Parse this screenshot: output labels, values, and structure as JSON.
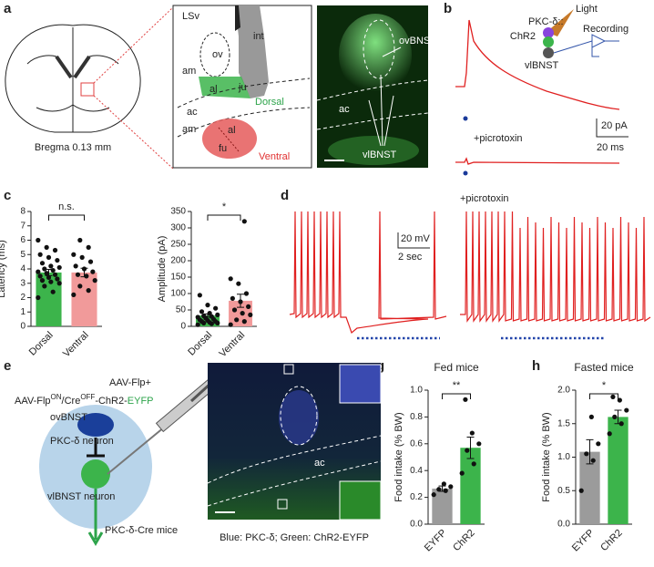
{
  "panel_labels": [
    "a",
    "b",
    "c",
    "d",
    "e",
    "f",
    "g",
    "h"
  ],
  "panel_a": {
    "caption": "Bregma 0.13 mm",
    "inset_labels": [
      "LSv",
      "int",
      "ov",
      "am",
      "al",
      "ju",
      "Dorsal",
      "ac",
      "am",
      "al",
      "fu",
      "Ventral"
    ],
    "image_labels": [
      "ovBNST",
      "ac",
      "vlBNST"
    ]
  },
  "panel_b": {
    "labels": [
      "PKC-δ::",
      "ChR2",
      "Light",
      "Recording",
      "vlBNST"
    ],
    "condition": "+picrotoxin",
    "scale_y": "20 pA",
    "scale_x": "20 ms"
  },
  "panel_d": {
    "condition": "+picrotoxin",
    "scale_y": "20 mV",
    "scale_x": "2 sec"
  },
  "panel_e": {
    "virus_1": "AAV-Flp+",
    "virus_2": [
      "AAV-Flp",
      "ON",
      "/Cre",
      "OFF",
      "-ChR2-",
      "EYFP"
    ],
    "labels": [
      "ovBNST",
      "PKC-δ neuron",
      "vlBNST neuron",
      "PKC-δ-Cre mice"
    ]
  },
  "panel_f": {
    "label": "ac",
    "caption": "Blue: PKC-δ; Green: ChR2-EYFP"
  },
  "chart_data": [
    {
      "type": "bar",
      "ylabel": "Latency (ms)",
      "categories": [
        "Dorsal",
        "Ventral"
      ],
      "colors": [
        "#3cb44b",
        "#f19a9a"
      ],
      "values": [
        3.75,
        3.75
      ],
      "errors": [
        0.22,
        0.3
      ],
      "annotation": "n.s.",
      "points": [
        [
          2.0,
          2.4,
          2.8,
          3.0,
          3.1,
          3.2,
          3.3,
          3.4,
          3.5,
          3.6,
          3.7,
          3.8,
          3.9,
          4.0,
          4.1,
          4.2,
          4.4,
          4.6,
          4.8,
          5.0,
          5.3,
          5.5,
          6.0
        ],
        [
          2.2,
          2.5,
          2.8,
          3.2,
          3.5,
          3.6,
          3.8,
          4.0,
          4.2,
          4.5,
          4.8,
          5.0,
          5.5,
          6.0
        ]
      ],
      "ylim": [
        0,
        8
      ],
      "yticks": [
        0,
        1,
        2,
        3,
        4,
        5,
        6,
        7,
        8
      ]
    },
    {
      "type": "bar",
      "ylabel": "Amplitude (pA)",
      "categories": [
        "Dorsal",
        "Ventral"
      ],
      "colors": [
        "#3cb44b",
        "#f19a9a"
      ],
      "values": [
        33,
        78
      ],
      "errors": [
        5,
        20
      ],
      "annotation": "*",
      "points": [
        [
          5,
          8,
          10,
          10,
          12,
          15,
          15,
          18,
          20,
          22,
          25,
          28,
          30,
          32,
          35,
          40,
          45,
          55,
          65,
          95
        ],
        [
          5,
          15,
          20,
          35,
          40,
          50,
          60,
          75,
          85,
          100,
          130,
          145,
          320
        ]
      ],
      "ylim": [
        0,
        350
      ],
      "yticks": [
        0,
        50,
        100,
        150,
        200,
        250,
        300,
        350
      ]
    },
    {
      "type": "bar",
      "title": "Fed mice",
      "ylabel": "Food intake (% BW)",
      "categories": [
        "EYFP",
        "ChR2"
      ],
      "colors": [
        "#9b9b9b",
        "#3cb44b"
      ],
      "values": [
        0.265,
        0.57
      ],
      "errors": [
        0.02,
        0.08
      ],
      "annotation": "**",
      "points": [
        [
          0.22,
          0.25,
          0.26,
          0.28,
          0.3
        ],
        [
          0.38,
          0.45,
          0.55,
          0.6,
          0.68,
          0.93
        ]
      ],
      "ylim": [
        0,
        1.0
      ],
      "yticks": [
        {
          "value": 0,
          "label": "0.0"
        },
        0.2,
        0.4,
        0.6,
        0.8,
        {
          "value": 1,
          "label": "1.0"
        }
      ]
    },
    {
      "type": "bar",
      "title": "Fasted mice",
      "ylabel": "Food intake (% BW)",
      "categories": [
        "EYFP",
        "ChR2"
      ],
      "colors": [
        "#9b9b9b",
        "#3cb44b"
      ],
      "values": [
        1.08,
        1.6
      ],
      "errors": [
        0.18,
        0.1
      ],
      "annotation": "*",
      "points": [
        [
          0.5,
          0.95,
          1.05,
          1.2,
          1.6
        ],
        [
          1.35,
          1.5,
          1.6,
          1.7,
          1.85,
          1.9
        ]
      ],
      "ylim": [
        0,
        2.0
      ],
      "yticks": [
        {
          "value": 0,
          "label": "0.0"
        },
        0.5,
        {
          "value": 1,
          "label": "1.0"
        },
        1.5,
        {
          "value": 2,
          "label": "2.0"
        }
      ]
    }
  ]
}
